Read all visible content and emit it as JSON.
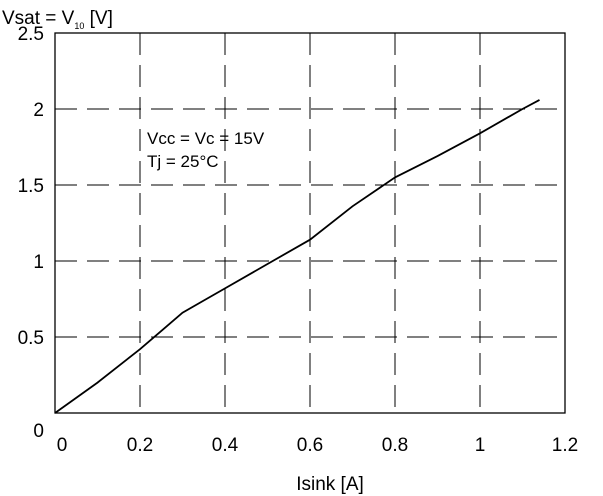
{
  "chart_data": {
    "type": "line",
    "title": "",
    "ylabel": "Vsat = V",
    "ylabel_sub": "10",
    "ylabel_unit": " [V]",
    "xlabel": "Isink [A]",
    "xlim": [
      0,
      1.2
    ],
    "ylim": [
      0,
      2.5
    ],
    "x_ticks": [
      {
        "value": 0,
        "label": "0"
      },
      {
        "value": 0.2,
        "label": "0.2"
      },
      {
        "value": 0.4,
        "label": "0.4"
      },
      {
        "value": 0.6,
        "label": "0.6"
      },
      {
        "value": 0.8,
        "label": "0.8"
      },
      {
        "value": 1.0,
        "label": "1"
      },
      {
        "value": 1.2,
        "label": "1.2"
      }
    ],
    "y_ticks": [
      {
        "value": 0,
        "label": "0"
      },
      {
        "value": 0.5,
        "label": "0.5"
      },
      {
        "value": 1.0,
        "label": "1"
      },
      {
        "value": 1.5,
        "label": "1.5"
      },
      {
        "value": 2.0,
        "label": "2"
      },
      {
        "value": 2.5,
        "label": "2.5"
      }
    ],
    "grid": true,
    "annotations": [
      "Vcc = Vc = 15V",
      "Tj = 25°C"
    ],
    "series": [
      {
        "x": [
          0,
          0.1,
          0.2,
          0.25,
          0.3,
          0.35,
          0.4,
          0.5,
          0.6,
          0.7,
          0.8,
          0.9,
          1.0,
          1.1,
          1.14
        ],
        "y": [
          0,
          0.2,
          0.42,
          0.54,
          0.66,
          0.74,
          0.82,
          0.98,
          1.14,
          1.36,
          1.55,
          1.69,
          1.84,
          2.0,
          2.06
        ]
      }
    ]
  }
}
